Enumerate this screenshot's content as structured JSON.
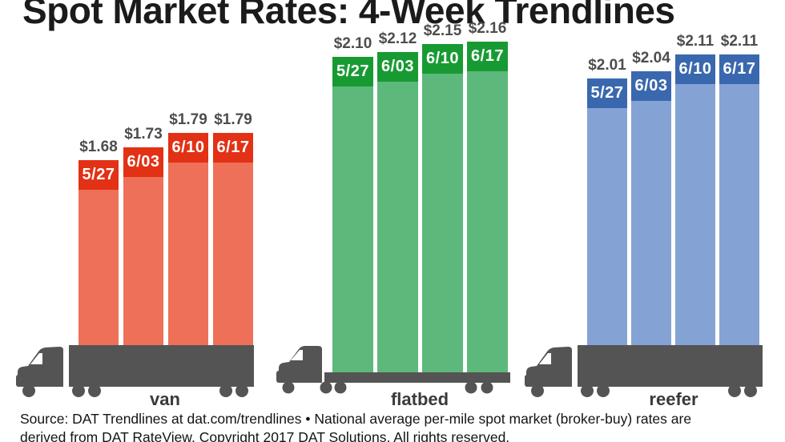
{
  "title": "Spot Market Rates: 4-Week Trendlines",
  "footer": {
    "line1": "Source: DAT Trendlines at dat.com/trendlines • National average per-mile spot market (broker-buy) rates are",
    "line2": "derived from DAT RateView. Copyright 2017 DAT Solutions. All rights reserved."
  },
  "chart_data": {
    "type": "bar",
    "title": "Spot Market Rates: 4-Week Trendlines",
    "categories": [
      "5/27",
      "6/03",
      "6/10",
      "6/17"
    ],
    "series": [
      {
        "name": "van",
        "values": [
          1.68,
          1.73,
          1.79,
          1.79
        ],
        "value_labels": [
          "$1.68",
          "$1.73",
          "$1.79",
          "$1.79"
        ],
        "header_color": "#e23115",
        "body_color": "#ee7058"
      },
      {
        "name": "flatbed",
        "values": [
          2.1,
          2.12,
          2.15,
          2.16
        ],
        "value_labels": [
          "$2.10",
          "$2.12",
          "$2.15",
          "$2.16"
        ],
        "header_color": "#189a33",
        "body_color": "#5db87b"
      },
      {
        "name": "reefer",
        "values": [
          2.01,
          2.04,
          2.11,
          2.11
        ],
        "value_labels": [
          "$2.01",
          "$2.04",
          "$2.11",
          "$2.11"
        ],
        "header_color": "#3a68ae",
        "body_color": "#84a2d4"
      }
    ],
    "xlabel": "",
    "ylabel": "",
    "legend": "none",
    "grid": false
  },
  "colors": {
    "truck": "#545454",
    "value_label": "#4d4d4d",
    "group_label": "#3a3a3a",
    "title_text": "#1b1b1b",
    "footer_text": "#141414",
    "background": "#ffffff"
  }
}
